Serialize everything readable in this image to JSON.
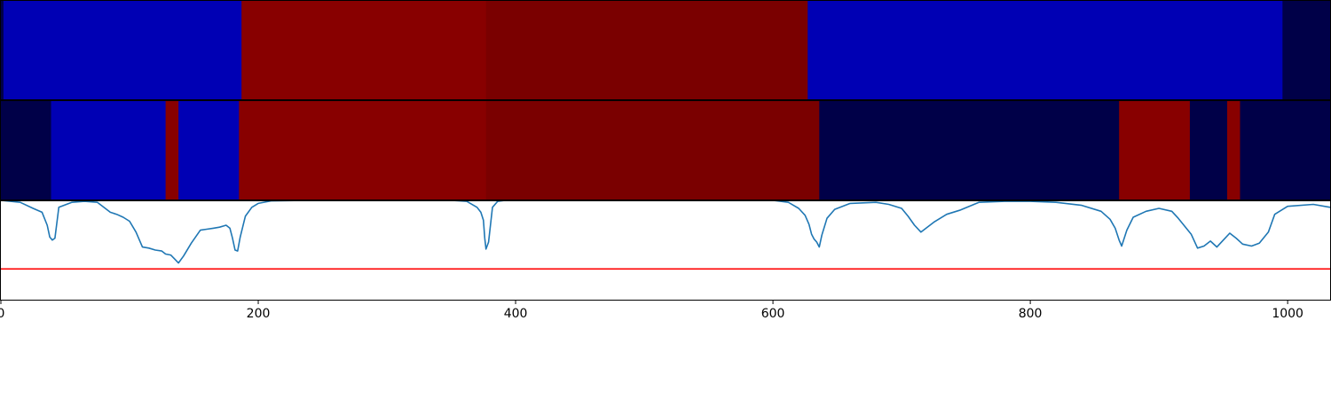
{
  "chart_data": [
    {
      "type": "heatmap",
      "x_range": [
        0,
        1033
      ],
      "colors": {
        "dark_navy": "#000048",
        "blue": "#0000b4",
        "red": "#880000",
        "dark_red": "#7a0000"
      },
      "segments": [
        {
          "start": 0,
          "end": 2,
          "color": "dark_navy"
        },
        {
          "start": 2,
          "end": 187,
          "color": "blue"
        },
        {
          "start": 187,
          "end": 377,
          "color": "red"
        },
        {
          "start": 377,
          "end": 627,
          "color": "dark_red"
        },
        {
          "start": 627,
          "end": 996,
          "color": "blue"
        },
        {
          "start": 996,
          "end": 1033,
          "color": "dark_navy"
        }
      ]
    },
    {
      "type": "heatmap",
      "x_range": [
        0,
        1033
      ],
      "colors": {
        "dark_navy": "#000048",
        "blue": "#0000b4",
        "red": "#880000",
        "dark_red": "#7a0000"
      },
      "segments": [
        {
          "start": 0,
          "end": 39,
          "color": "dark_navy"
        },
        {
          "start": 39,
          "end": 128,
          "color": "blue"
        },
        {
          "start": 128,
          "end": 138,
          "color": "red"
        },
        {
          "start": 138,
          "end": 185,
          "color": "blue"
        },
        {
          "start": 185,
          "end": 377,
          "color": "red"
        },
        {
          "start": 377,
          "end": 636,
          "color": "dark_red"
        },
        {
          "start": 636,
          "end": 869,
          "color": "dark_navy"
        },
        {
          "start": 869,
          "end": 924,
          "color": "red"
        },
        {
          "start": 924,
          "end": 953,
          "color": "dark_navy"
        },
        {
          "start": 953,
          "end": 963,
          "color": "red"
        },
        {
          "start": 963,
          "end": 1033,
          "color": "dark_navy"
        }
      ]
    },
    {
      "type": "line",
      "xlim": [
        0,
        1033
      ],
      "ylim": [
        0,
        1
      ],
      "xticks": [
        "0",
        "200",
        "400",
        "600",
        "800",
        "1000"
      ],
      "xtick_values": [
        0,
        200,
        400,
        600,
        800,
        1000
      ],
      "line_color": "#1f77b4",
      "threshold": 0.31,
      "threshold_color": "#ff0000",
      "series": [
        {
          "x": [
            0,
            15,
            25,
            32,
            36,
            38,
            40,
            42,
            45,
            55,
            65,
            75,
            80,
            85,
            90,
            95,
            100,
            105,
            110,
            115,
            120,
            125,
            128,
            132,
            135,
            138,
            142,
            148,
            155,
            160,
            165,
            170,
            175,
            178,
            180,
            182,
            184,
            186,
            190,
            195,
            200,
            210,
            240,
            280,
            320,
            350,
            362,
            370,
            373,
            375,
            376,
            377,
            379,
            382,
            386,
            392,
            400,
            450,
            500,
            550,
            600,
            612,
            620,
            625,
            628,
            630,
            632,
            634,
            636,
            638,
            642,
            648,
            660,
            680,
            690,
            700,
            705,
            710,
            715,
            725,
            735,
            745,
            760,
            780,
            800,
            820,
            840,
            855,
            862,
            866,
            869,
            871,
            875,
            880,
            890,
            900,
            910,
            915,
            920,
            925,
            930,
            935,
            940,
            945,
            950,
            955,
            960,
            965,
            972,
            978,
            985,
            990,
            1000,
            1020,
            1033
          ],
          "y": [
            1.0,
            0.98,
            0.92,
            0.88,
            0.75,
            0.63,
            0.6,
            0.62,
            0.93,
            0.98,
            0.99,
            0.98,
            0.93,
            0.88,
            0.86,
            0.83,
            0.79,
            0.68,
            0.53,
            0.52,
            0.5,
            0.49,
            0.46,
            0.45,
            0.41,
            0.37,
            0.44,
            0.57,
            0.7,
            0.71,
            0.72,
            0.73,
            0.75,
            0.72,
            0.62,
            0.5,
            0.49,
            0.63,
            0.84,
            0.93,
            0.97,
            0.995,
            1.0,
            1.0,
            1.0,
            1.0,
            0.99,
            0.93,
            0.88,
            0.8,
            0.62,
            0.51,
            0.58,
            0.93,
            0.99,
            1.0,
            1.0,
            1.0,
            1.0,
            1.0,
            1.0,
            0.98,
            0.92,
            0.85,
            0.76,
            0.66,
            0.61,
            0.58,
            0.53,
            0.65,
            0.82,
            0.91,
            0.97,
            0.98,
            0.96,
            0.92,
            0.84,
            0.75,
            0.68,
            0.78,
            0.86,
            0.9,
            0.98,
            0.99,
            0.99,
            0.98,
            0.95,
            0.89,
            0.81,
            0.72,
            0.6,
            0.54,
            0.7,
            0.83,
            0.89,
            0.92,
            0.89,
            0.82,
            0.74,
            0.66,
            0.52,
            0.54,
            0.59,
            0.53,
            0.6,
            0.67,
            0.62,
            0.56,
            0.54,
            0.57,
            0.68,
            0.86,
            0.94,
            0.96,
            0.93
          ]
        }
      ]
    }
  ]
}
